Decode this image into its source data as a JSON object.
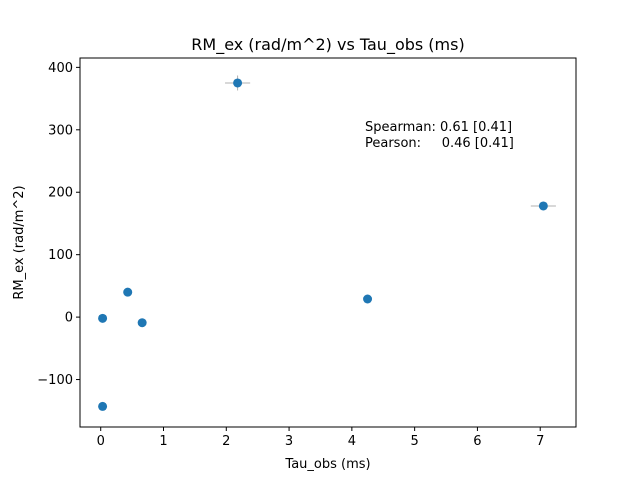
{
  "chart_data": {
    "type": "scatter",
    "title": "RM_ex (rad/m^2) vs Tau_obs (ms)",
    "xlabel": "Tau_obs (ms)",
    "ylabel": "RM_ex (rad/m^2)",
    "xlim": [
      -0.33,
      7.57
    ],
    "ylim": [
      -176,
      415
    ],
    "xticks": [
      0,
      1,
      2,
      3,
      4,
      5,
      6,
      7
    ],
    "yticks": [
      -100,
      0,
      100,
      200,
      300,
      400
    ],
    "xtick_labels": [
      "0",
      "1",
      "2",
      "3",
      "4",
      "5",
      "6",
      "7"
    ],
    "ytick_labels": [
      "−100",
      "0",
      "100",
      "200",
      "300",
      "400"
    ],
    "grid": false,
    "marker_color": "#1f77b4",
    "errorbar_color": "#b0b0b0",
    "points": [
      {
        "x": 0.03,
        "y": -143,
        "xerr": 0,
        "yerr": 0
      },
      {
        "x": 0.03,
        "y": -2,
        "xerr": 0,
        "yerr": 0
      },
      {
        "x": 0.43,
        "y": 40,
        "xerr": 0,
        "yerr": 0
      },
      {
        "x": 0.66,
        "y": -9,
        "xerr": 0,
        "yerr": 0
      },
      {
        "x": 2.18,
        "y": 375,
        "xerr": 0.2,
        "yerr": 12
      },
      {
        "x": 4.25,
        "y": 29,
        "xerr": 0,
        "yerr": 0
      },
      {
        "x": 7.05,
        "y": 178,
        "xerr": 0.2,
        "yerr": 0
      }
    ],
    "annotations": [
      "Spearman: 0.61 [0.41]",
      "Pearson:     0.46 [0.41]"
    ]
  }
}
